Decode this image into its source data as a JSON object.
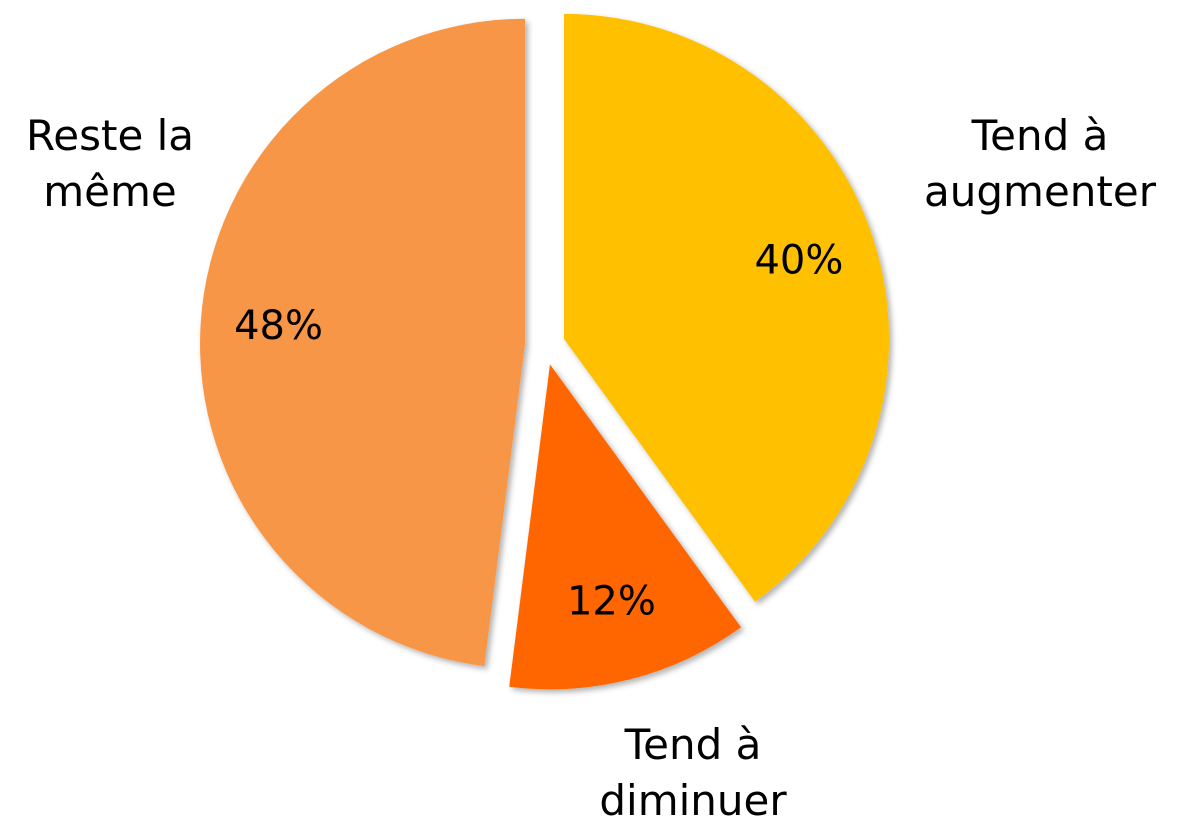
{
  "chart_data": {
    "type": "pie",
    "categories": [
      "Tend à augmenter",
      "Tend à diminuer",
      "Reste la même"
    ],
    "values": [
      40,
      12,
      48
    ],
    "value_labels": [
      "40%",
      "12%",
      "48%"
    ],
    "colors": [
      "#ffc000",
      "#ff6600",
      "#f79646"
    ]
  }
}
